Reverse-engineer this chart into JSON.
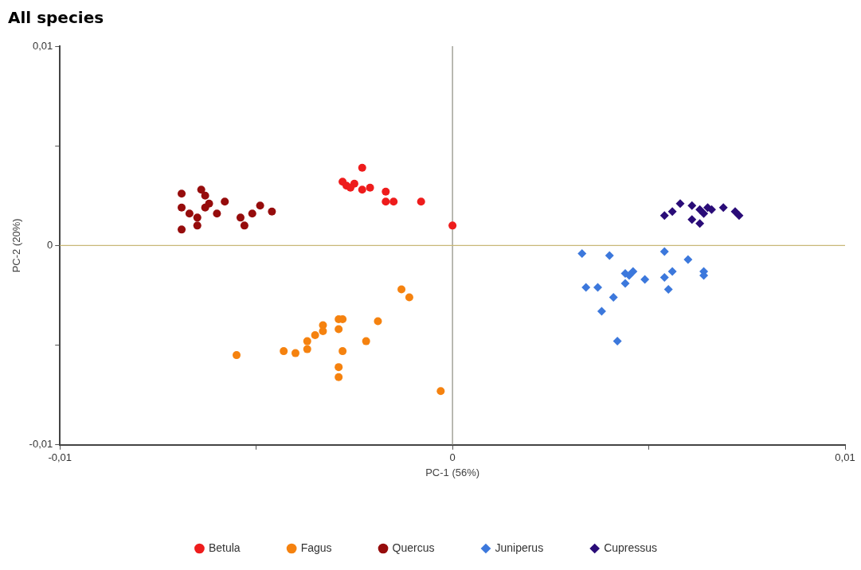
{
  "chart_data": {
    "type": "scatter",
    "title": "All species",
    "xlabel": "PC-1 (56%)",
    "ylabel": "PC-2 (20%)",
    "xlim": [
      -0.01,
      0.01
    ],
    "ylim": [
      -0.01,
      0.01
    ],
    "xticks": [
      {
        "value": -0.01,
        "label": "-0,01"
      },
      {
        "value": -0.005,
        "label": null
      },
      {
        "value": 0,
        "label": "0"
      },
      {
        "value": 0.005,
        "label": null
      },
      {
        "value": 0.01,
        "label": "0,01"
      }
    ],
    "yticks": [
      {
        "value": -0.01,
        "label": "-0,01"
      },
      {
        "value": -0.005,
        "label": null
      },
      {
        "value": 0,
        "label": "0"
      },
      {
        "value": 0.005,
        "label": null
      },
      {
        "value": 0.01,
        "label": "0,01"
      }
    ],
    "grid": false,
    "legend": "bottom",
    "ref_lines": [
      {
        "axis": "x",
        "value": 0,
        "color": "#8c8c80"
      },
      {
        "axis": "y",
        "value": 0,
        "color": "#c8b878"
      }
    ],
    "series": [
      {
        "name": "Betula",
        "color": "#ee1c1c",
        "marker": "circle",
        "x": [
          -0.0023,
          -0.0028,
          -0.0027,
          -0.0025,
          -0.0023,
          -0.0021,
          -0.0017,
          -0.0017,
          -0.0015,
          -0.0008,
          0.0,
          -0.0026
        ],
        "values": [
          0.0039,
          0.0032,
          0.003,
          0.0031,
          0.0028,
          0.0029,
          0.0027,
          0.0022,
          0.0022,
          0.0022,
          0.001,
          0.0029
        ]
      },
      {
        "name": "Fagus",
        "color": "#f5820f",
        "marker": "circle",
        "x": [
          -0.0055,
          -0.0043,
          -0.004,
          -0.0037,
          -0.0037,
          -0.0035,
          -0.0033,
          -0.0033,
          -0.0029,
          -0.0028,
          -0.0029,
          -0.0028,
          -0.0029,
          -0.0029,
          -0.0022,
          -0.0019,
          -0.0013,
          -0.0011,
          -0.0003
        ],
        "values": [
          -0.0055,
          -0.0053,
          -0.0054,
          -0.0052,
          -0.0048,
          -0.0045,
          -0.004,
          -0.0043,
          -0.0037,
          -0.0037,
          -0.0042,
          -0.0053,
          -0.0061,
          -0.0066,
          -0.0048,
          -0.0038,
          -0.0022,
          -0.0026,
          -0.0073
        ]
      },
      {
        "name": "Quercus",
        "color": "#960c0c",
        "marker": "circle",
        "x": [
          -0.0069,
          -0.0064,
          -0.0063,
          -0.0062,
          -0.0063,
          -0.0065,
          -0.0065,
          -0.0069,
          -0.0069,
          -0.0067,
          -0.0058,
          -0.006,
          -0.0054,
          -0.0053,
          -0.0051,
          -0.0049,
          -0.0046
        ],
        "values": [
          0.0026,
          0.0028,
          0.0025,
          0.0021,
          0.0019,
          0.0014,
          0.001,
          0.0008,
          0.0019,
          0.0016,
          0.0022,
          0.0016,
          0.0014,
          0.001,
          0.0016,
          0.002,
          0.0017
        ]
      },
      {
        "name": "Juniperus",
        "color": "#3c78dc",
        "marker": "diamond",
        "x": [
          0.0033,
          0.004,
          0.0054,
          0.006,
          0.0044,
          0.0046,
          0.0045,
          0.0049,
          0.0054,
          0.0056,
          0.0064,
          0.0064,
          0.0044,
          0.0055,
          0.0034,
          0.0037,
          0.0041,
          0.0038,
          0.0042
        ],
        "values": [
          -0.0004,
          -0.0005,
          -0.0003,
          -0.0007,
          -0.0014,
          -0.0013,
          -0.0015,
          -0.0017,
          -0.0016,
          -0.0013,
          -0.0013,
          -0.0015,
          -0.0019,
          -0.0022,
          -0.0021,
          -0.0021,
          -0.0026,
          -0.0033,
          -0.0048
        ]
      },
      {
        "name": "Cupressus",
        "color": "#2a0c78",
        "marker": "diamond",
        "x": [
          0.0054,
          0.0056,
          0.0058,
          0.0061,
          0.0063,
          0.0065,
          0.0066,
          0.0064,
          0.0069,
          0.0072,
          0.0073,
          0.0061,
          0.0063
        ],
        "values": [
          0.0015,
          0.0017,
          0.0021,
          0.002,
          0.0018,
          0.0019,
          0.0018,
          0.0016,
          0.0019,
          0.0017,
          0.0015,
          0.0013,
          0.0011
        ]
      }
    ]
  }
}
